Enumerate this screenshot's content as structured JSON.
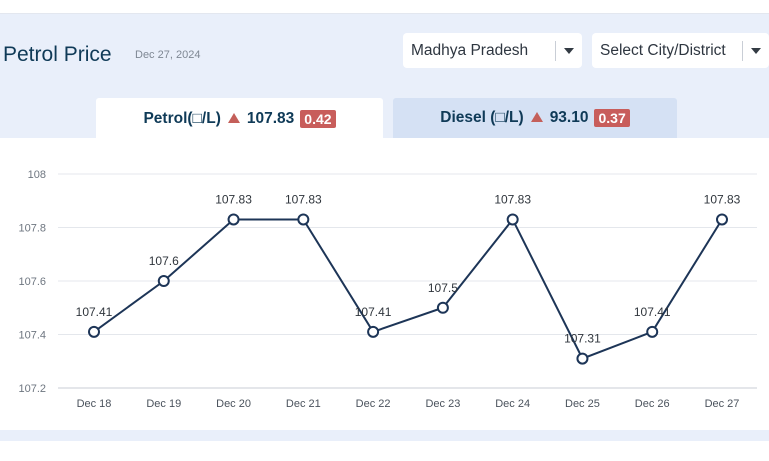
{
  "header": {
    "title": "Petrol Price",
    "date": "Dec 27, 2024"
  },
  "filters": {
    "state": "Madhya Pradesh",
    "city": "Select City/District"
  },
  "tabs": {
    "petrol": {
      "label": "Petrol(□/L)",
      "price": "107.83",
      "change": "0.42"
    },
    "diesel": {
      "label": "Diesel (□/L)",
      "price": "93.10",
      "change": "0.37"
    }
  },
  "colors": {
    "line": "#1d3557",
    "up_arrow": "#c45f5a",
    "badge": "#c85d5b"
  },
  "chart_data": {
    "type": "line",
    "title": "",
    "xlabel": "",
    "ylabel": "",
    "categories": [
      "Dec 18",
      "Dec 19",
      "Dec 20",
      "Dec 21",
      "Dec 22",
      "Dec 23",
      "Dec 24",
      "Dec 25",
      "Dec 26",
      "Dec 27"
    ],
    "series": [
      {
        "values": [
          107.41,
          107.6,
          107.83,
          107.83,
          107.41,
          107.5,
          107.83,
          107.31,
          107.41,
          107.83
        ]
      }
    ],
    "data_labels": [
      "107.41",
      "107.6",
      "107.83",
      "107.83",
      "107.41",
      "107.5",
      "107.83",
      "107.31",
      "107.41",
      "107.83"
    ],
    "yticks": [
      "107.2",
      "107.4",
      "107.6",
      "107.8",
      "108"
    ],
    "ylim": [
      107.2,
      108
    ],
    "grid": true,
    "legend": "none"
  }
}
